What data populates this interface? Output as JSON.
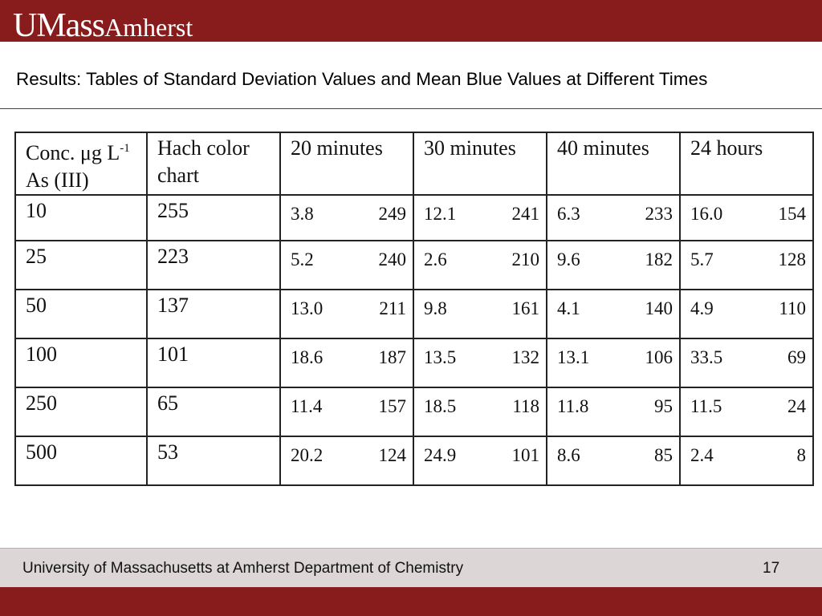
{
  "header": {
    "logo_main": "UMass",
    "logo_secondary": "Amherst",
    "brand_color": "#881c1c"
  },
  "slide": {
    "title": "Results: Tables of Standard Deviation Values and Mean Blue Values at Different Times"
  },
  "table": {
    "headers": {
      "conc_line1": "Conc. μg L",
      "conc_superscript": "-1",
      "conc_line2": "As (III)",
      "hach": "Hach color chart",
      "t20": "20 minutes",
      "t30": "30 minutes",
      "t40": "40 minutes",
      "t24h": "24 hours"
    },
    "rows": [
      {
        "conc": "10",
        "hach": "255",
        "t20": [
          "3.8",
          "249"
        ],
        "t30": [
          "12.1",
          "241"
        ],
        "t40": [
          "6.3",
          "233"
        ],
        "t24h": [
          "16.0",
          "154"
        ]
      },
      {
        "conc": "25",
        "hach": "223",
        "t20": [
          "5.2",
          "240"
        ],
        "t30": [
          "2.6",
          "210"
        ],
        "t40": [
          "9.6",
          "182"
        ],
        "t24h": [
          "5.7",
          "128"
        ]
      },
      {
        "conc": "50",
        "hach": "137",
        "t20": [
          "13.0",
          "211"
        ],
        "t30": [
          "9.8",
          "161"
        ],
        "t40": [
          "4.1",
          "140"
        ],
        "t24h": [
          "4.9",
          "110"
        ]
      },
      {
        "conc": "100",
        "hach": "101",
        "t20": [
          "18.6",
          "187"
        ],
        "t30": [
          "13.5",
          "132"
        ],
        "t40": [
          "13.1",
          "106"
        ],
        "t24h": [
          "33.5",
          "69"
        ]
      },
      {
        "conc": "250",
        "hach": "65",
        "t20": [
          "11.4",
          "157"
        ],
        "t30": [
          "18.5",
          "118"
        ],
        "t40": [
          "11.8",
          "95"
        ],
        "t24h": [
          "11.5",
          "24"
        ]
      },
      {
        "conc": "500",
        "hach": "53",
        "t20": [
          "20.2",
          "124"
        ],
        "t30": [
          "24.9",
          "101"
        ],
        "t40": [
          "8.6",
          "85"
        ],
        "t24h": [
          "2.4",
          "8"
        ]
      }
    ]
  },
  "footer": {
    "text": "University of Massachusetts at Amherst Department of Chemistry",
    "page_number": "17"
  }
}
